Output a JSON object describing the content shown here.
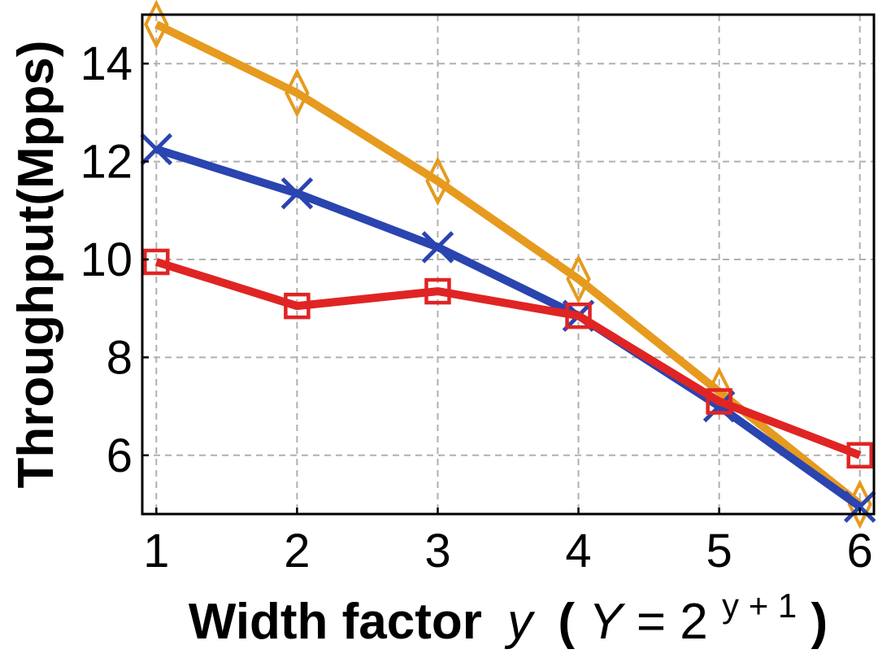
{
  "chart_data": {
    "type": "line",
    "xlabel_text": "Width factor",
    "xlabel_var": "y",
    "xlabel_paren_open": "(",
    "xlabel_cap_var": "Y",
    "xlabel_eq": " = 2",
    "xlabel_exponent": "y + 1",
    "xlabel_paren_close": ")",
    "ylabel": "Throughput(Mpps)",
    "x": [
      1,
      2,
      3,
      4,
      5,
      6
    ],
    "xlim": [
      0.9,
      6.1
    ],
    "ylim": [
      4.8,
      15
    ],
    "xticks": [
      1,
      2,
      3,
      4,
      5,
      6
    ],
    "yticks": [
      6,
      8,
      10,
      12,
      14
    ],
    "grid": true,
    "series": [
      {
        "color": "#e69a1e",
        "marker": "diamond",
        "values": [
          14.8,
          13.4,
          11.6,
          9.6,
          7.3,
          5.0
        ]
      },
      {
        "color": "#2a44b0",
        "marker": "x",
        "values": [
          12.25,
          11.35,
          10.25,
          8.85,
          7.0,
          4.95
        ]
      },
      {
        "color": "#e02424",
        "marker": "square",
        "values": [
          9.95,
          9.05,
          9.35,
          8.85,
          7.1,
          6.0
        ]
      }
    ]
  }
}
